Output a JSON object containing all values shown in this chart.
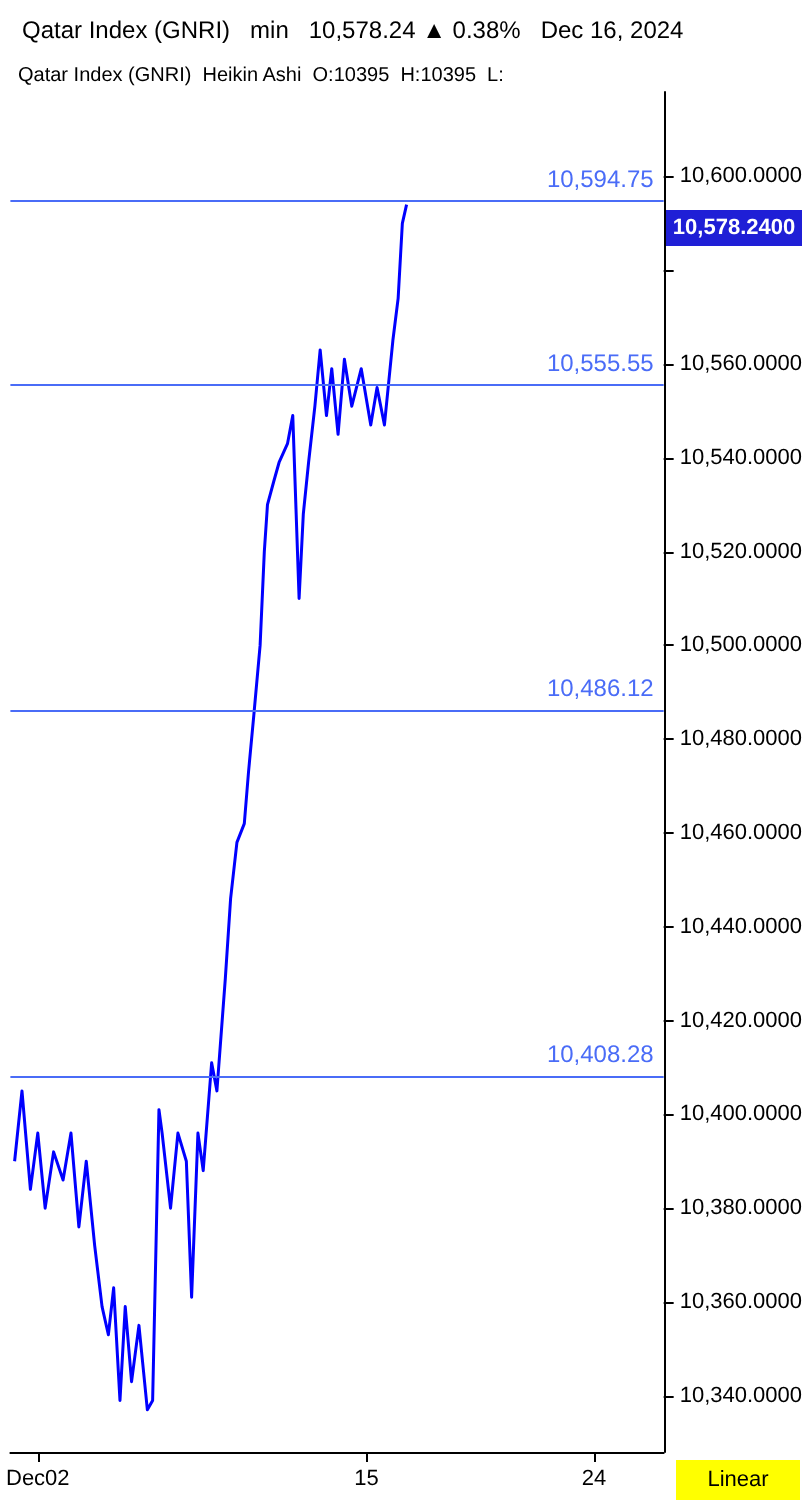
{
  "chart_data": {
    "type": "line",
    "title": "Qatar Index (GNRI)   min   10,578.24 ▲ 0.38%   Dec 16, 2024",
    "subtitle": "Qatar Index (GNRI)  Heikin Ashi  O:10395  H:10395  L:",
    "x": [
      "2024-12-01T02:00",
      "2024-12-01T09:00",
      "2024-12-01T17:00",
      "2024-12-02T00:00",
      "2024-12-02T07:00",
      "2024-12-02T15:00",
      "2024-12-03T00:00",
      "2024-12-03T07:30",
      "2024-12-03T15:00",
      "2024-12-03T22:00",
      "2024-12-04T06:00",
      "2024-12-04T13:00",
      "2024-12-04T19:00",
      "2024-12-05T00:00",
      "2024-12-05T06:00",
      "2024-12-05T11:00",
      "2024-12-05T17:00",
      "2024-12-06T00:00",
      "2024-12-06T08:00",
      "2024-12-06T13:00",
      "2024-12-06T19:00",
      "2024-12-06T22:00",
      "2024-12-07T06:00",
      "2024-12-07T13:00",
      "2024-12-07T21:00",
      "2024-12-08T02:00",
      "2024-12-08T08:00",
      "2024-12-08T13:00",
      "2024-12-08T21:00",
      "2024-12-09T02:00",
      "2024-12-09T10:00",
      "2024-12-09T15:00",
      "2024-12-09T21:00",
      "2024-12-10T04:00",
      "2024-12-10T08:00",
      "2024-12-10T13:00",
      "2024-12-10T19:00",
      "2024-12-10T23:00",
      "2024-12-11T02:00",
      "2024-12-11T08:00",
      "2024-12-11T13:00",
      "2024-12-11T21:00",
      "2024-12-12T02:00",
      "2024-12-12T08:00",
      "2024-12-12T12:00",
      "2024-12-12T17:00",
      "2024-12-12T23:00",
      "2024-12-13T04:00",
      "2024-12-13T10:00",
      "2024-12-13T15:00",
      "2024-12-13T21:00",
      "2024-12-14T03:00",
      "2024-12-14T10:00",
      "2024-12-14T19:00",
      "2024-12-15T04:00",
      "2024-12-15T10:00",
      "2024-12-15T17:00",
      "2024-12-16T01:00",
      "2024-12-16T06:00",
      "2024-12-16T10:00",
      "2024-12-16T14:00"
    ],
    "series": [
      {
        "color": "#0000ff",
        "values": [
          10390,
          10405,
          10384,
          10396,
          10380,
          10392,
          10386,
          10396,
          10376,
          10390,
          10372,
          10359,
          10353,
          10363,
          10339,
          10359,
          10343,
          10355,
          10337,
          10339,
          10401,
          10396,
          10380,
          10396,
          10390,
          10361,
          10396,
          10388,
          10411,
          10405,
          10429,
          10446,
          10458,
          10462,
          10473,
          10485,
          10500,
          10520,
          10530,
          10535,
          10539,
          10543,
          10549,
          10510,
          10528,
          10539,
          10551,
          10563,
          10549,
          10559,
          10545,
          10561,
          10551,
          10559,
          10547,
          10555,
          10547,
          10565,
          10574,
          10590,
          10594
        ]
      }
    ],
    "xlim": [
      "2024-11-30T22:00",
      "2024-12-26T18:00"
    ],
    "xticks": [
      {
        "value": "2024-12-02",
        "label": "Dec02"
      },
      {
        "value": "2024-12-15",
        "label": "15"
      },
      {
        "value": "2024-12-24",
        "label": "24"
      }
    ],
    "ylim": [
      10328,
      10618
    ],
    "yticks": [
      {
        "value": 10340,
        "label": "10,340.0000"
      },
      {
        "value": 10360,
        "label": "10,360.0000"
      },
      {
        "value": 10380,
        "label": "10,380.0000"
      },
      {
        "value": 10400,
        "label": "10,400.0000"
      },
      {
        "value": 10420,
        "label": "10,420.0000"
      },
      {
        "value": 10440,
        "label": "10,440.0000"
      },
      {
        "value": 10460,
        "label": "10,460.0000"
      },
      {
        "value": 10480,
        "label": "10,480.0000"
      },
      {
        "value": 10500,
        "label": "10,500.0000"
      },
      {
        "value": 10520,
        "label": "10,520.0000"
      },
      {
        "value": 10540,
        "label": "10,540.0000"
      },
      {
        "value": 10560,
        "label": "10,560.0000"
      },
      {
        "value": 10580,
        "label": null
      },
      {
        "value": 10600,
        "label": "10,600.0000"
      }
    ],
    "ref_lines": [
      {
        "axis": "y",
        "value": 10594.75,
        "label": "10,594.75",
        "color": "#4a6cf7"
      },
      {
        "axis": "y",
        "value": 10555.55,
        "label": "10,555.55",
        "color": "#4a6cf7"
      },
      {
        "axis": "y",
        "value": 10486.12,
        "label": "10,486.12",
        "color": "#4a6cf7"
      },
      {
        "axis": "y",
        "value": 10408.28,
        "label": "10,408.28",
        "color": "#4a6cf7"
      }
    ],
    "annotations": [
      "10,578.2400",
      "Linear"
    ],
    "grid": false,
    "marker": "none",
    "line_style": "solid"
  }
}
